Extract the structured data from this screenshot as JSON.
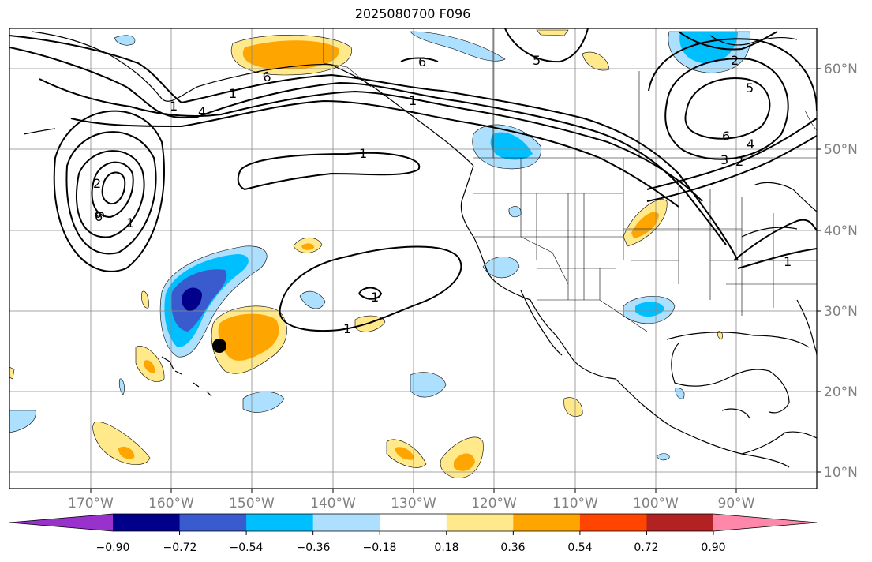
{
  "title": "2025080700 F096",
  "map": {
    "lon_labels": [
      "170°W",
      "160°W",
      "150°W",
      "140°W",
      "130°W",
      "120°W",
      "110°W",
      "100°W",
      "90°W"
    ],
    "lat_labels": [
      "60°N",
      "50°N",
      "40°N",
      "30°N",
      "20°N",
      "10°N"
    ],
    "contour_labels": [
      "6",
      "4",
      "1",
      "2",
      "9",
      "6",
      "1",
      "1",
      "1",
      "6",
      "5",
      "1",
      "6",
      "5",
      "2",
      "4",
      "3",
      "2",
      "1",
      "1",
      "1"
    ],
    "marker": "black-dot"
  },
  "colorbar": {
    "ticks": [
      "−0.90",
      "−0.72",
      "−0.54",
      "−0.36",
      "−0.18",
      "0.18",
      "0.36",
      "0.54",
      "0.72",
      "0.90"
    ],
    "colors": [
      "#9932CC",
      "#00008B",
      "#3A5BCD",
      "#00BFFF",
      "#ADDFFF",
      "#FFFFFF",
      "#FFE98A",
      "#FFA500",
      "#FF4500",
      "#B22222",
      "#FF88AA"
    ]
  }
}
